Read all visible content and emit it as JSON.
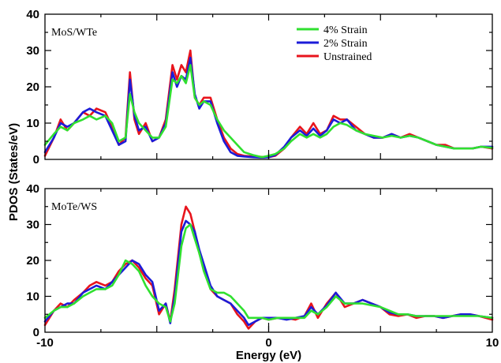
{
  "chart_data": [
    {
      "type": "line",
      "panel_label": "MoS/WTe",
      "xlim": [
        -10,
        10
      ],
      "ylim": [
        0,
        40
      ],
      "xticks": [
        "-10",
        "",
        "0",
        "",
        "10"
      ],
      "yticks": [
        "0",
        "10",
        "20",
        "30",
        "40"
      ],
      "legend": [
        "4% Strain",
        "2% Strain",
        "Unstrained"
      ],
      "legend_placement": "top-right",
      "series": [
        {
          "name": "Unstrained",
          "color": "#e8141c",
          "x": [
            -10,
            -9.6,
            -9.3,
            -9.0,
            -8.7,
            -8.3,
            -8.0,
            -7.7,
            -7.3,
            -7.0,
            -6.7,
            -6.4,
            -6.2,
            -6.0,
            -5.8,
            -5.5,
            -5.2,
            -4.9,
            -4.6,
            -4.3,
            -4.1,
            -3.9,
            -3.7,
            -3.5,
            -3.3,
            -3.1,
            -2.9,
            -2.6,
            -2.3,
            -2.0,
            -1.7,
            -1.4,
            -1.1,
            -0.7,
            -0.3,
            0,
            0.3,
            0.7,
            1.0,
            1.4,
            1.7,
            2.0,
            2.3,
            2.6,
            2.9,
            3.2,
            3.5,
            3.9,
            4.3,
            4.7,
            5.1,
            5.5,
            5.9,
            6.3,
            6.7,
            7.1,
            7.5,
            7.9,
            8.3,
            8.7,
            9.1,
            9.5,
            10
          ],
          "y": [
            1,
            6,
            11,
            8,
            10,
            13,
            12,
            14,
            13,
            9,
            4,
            6,
            24,
            11,
            7,
            10,
            5,
            6,
            11,
            26,
            22,
            26,
            24,
            30,
            17,
            15,
            17,
            17,
            11,
            6,
            3,
            1.5,
            1,
            0.8,
            0.7,
            0.6,
            1,
            3,
            6,
            9,
            7,
            10,
            7,
            8,
            12,
            11,
            11,
            9,
            7,
            6,
            6,
            7,
            6,
            7,
            6,
            5,
            4,
            4,
            3,
            3,
            3,
            3.5,
            3
          ]
        },
        {
          "name": "2% Strain",
          "color": "#1c1cd8",
          "x": [
            -10,
            -9.6,
            -9.3,
            -9.0,
            -8.7,
            -8.3,
            -8.0,
            -7.7,
            -7.3,
            -7.0,
            -6.7,
            -6.4,
            -6.2,
            -6.0,
            -5.8,
            -5.5,
            -5.2,
            -4.9,
            -4.6,
            -4.3,
            -4.1,
            -3.9,
            -3.7,
            -3.5,
            -3.3,
            -3.1,
            -2.9,
            -2.6,
            -2.3,
            -2.0,
            -1.7,
            -1.4,
            -1.1,
            -0.7,
            -0.3,
            0,
            0.3,
            0.7,
            1.0,
            1.4,
            1.7,
            2.0,
            2.3,
            2.6,
            2.9,
            3.2,
            3.5,
            3.9,
            4.3,
            4.7,
            5.1,
            5.5,
            5.9,
            6.3,
            6.7,
            7.1,
            7.5,
            7.9,
            8.3,
            8.7,
            9.1,
            9.5,
            10
          ],
          "y": [
            2,
            6,
            10,
            9,
            10,
            13,
            14,
            13,
            12,
            8,
            4,
            5,
            22,
            12,
            8,
            9,
            5,
            6,
            10,
            24,
            20,
            23,
            22,
            28,
            18,
            14,
            16,
            16,
            10,
            5,
            2,
            1,
            0.8,
            0.6,
            0.5,
            0.6,
            1.2,
            3.5,
            6,
            8,
            6.5,
            8.5,
            6.5,
            8,
            11,
            10,
            11,
            8,
            7,
            6,
            6,
            7,
            6,
            6.5,
            6,
            5,
            4,
            3.5,
            3,
            3,
            3,
            3.5,
            3.5
          ]
        },
        {
          "name": "4% Strain",
          "color": "#30e030",
          "x": [
            -10,
            -9.6,
            -9.3,
            -9.0,
            -8.7,
            -8.3,
            -8.0,
            -7.7,
            -7.3,
            -7.0,
            -6.7,
            -6.4,
            -6.2,
            -6.0,
            -5.8,
            -5.5,
            -5.2,
            -4.9,
            -4.6,
            -4.3,
            -4.1,
            -3.9,
            -3.7,
            -3.5,
            -3.3,
            -3.1,
            -2.9,
            -2.6,
            -2.3,
            -2.0,
            -1.7,
            -1.4,
            -1.1,
            -0.7,
            -0.3,
            0,
            0.3,
            0.7,
            1.0,
            1.4,
            1.7,
            2.0,
            2.3,
            2.6,
            2.9,
            3.2,
            3.5,
            3.9,
            4.3,
            4.7,
            5.1,
            5.5,
            5.9,
            6.3,
            6.7,
            7.1,
            7.5,
            7.9,
            8.3,
            8.7,
            9.1,
            9.5,
            10
          ],
          "y": [
            4,
            7,
            9,
            8,
            10,
            11,
            12,
            11,
            12,
            10,
            5,
            6,
            18,
            13,
            10,
            8,
            6,
            6,
            9,
            22,
            21,
            23,
            21,
            26,
            17,
            15,
            16,
            15,
            11,
            8,
            6,
            4,
            2,
            1.2,
            0.6,
            1,
            1.5,
            3,
            5,
            7,
            6,
            7,
            6,
            7,
            9,
            10,
            9.5,
            8,
            7,
            6.5,
            6,
            6.5,
            6,
            6.5,
            6,
            5,
            4,
            3.5,
            3,
            3,
            3,
            3.5,
            3.2
          ]
        }
      ]
    },
    {
      "type": "line",
      "panel_label": "MoTe/WS",
      "xlim": [
        -10,
        10
      ],
      "ylim": [
        0,
        40
      ],
      "xticks": [
        "-10",
        "",
        "0",
        "",
        "10"
      ],
      "yticks": [
        "0",
        "10",
        "20",
        "30",
        "40"
      ],
      "xlabel": "Energy (eV)",
      "series": [
        {
          "name": "Unstrained",
          "color": "#e8141c",
          "x": [
            -10,
            -9.6,
            -9.3,
            -9.0,
            -8.7,
            -8.3,
            -8.0,
            -7.7,
            -7.3,
            -7.0,
            -6.7,
            -6.4,
            -6.1,
            -5.8,
            -5.5,
            -5.2,
            -4.9,
            -4.6,
            -4.4,
            -4.2,
            -3.9,
            -3.7,
            -3.5,
            -3.3,
            -3.1,
            -2.9,
            -2.6,
            -2.3,
            -2.0,
            -1.7,
            -1.4,
            -1.1,
            -0.9,
            -0.6,
            -0.3,
            0,
            0.4,
            0.8,
            1.2,
            1.6,
            1.9,
            2.2,
            2.6,
            3.0,
            3.4,
            3.8,
            4.2,
            4.6,
            5.0,
            5.4,
            5.8,
            6.2,
            6.6,
            7.0,
            7.4,
            7.8,
            8.2,
            8.6,
            9.0,
            9.4,
            10
          ],
          "y": [
            2,
            6,
            8,
            7,
            9,
            11,
            13,
            14,
            13,
            14,
            17,
            19,
            20,
            18,
            15,
            13,
            5,
            8,
            3,
            12,
            30,
            35,
            33,
            28,
            22,
            18,
            12,
            10,
            9,
            8,
            5,
            3,
            1,
            3,
            4,
            3.5,
            4,
            4,
            3.5,
            4.5,
            8,
            4,
            8,
            11,
            7,
            8,
            9,
            8,
            7,
            5,
            4.5,
            5,
            4,
            4.5,
            4.5,
            4,
            4.5,
            5,
            5,
            4.5,
            3.5
          ]
        },
        {
          "name": "2% Strain",
          "color": "#1c1cd8",
          "x": [
            -10,
            -9.6,
            -9.3,
            -9.0,
            -8.7,
            -8.3,
            -8.0,
            -7.7,
            -7.3,
            -7.0,
            -6.7,
            -6.4,
            -6.1,
            -5.8,
            -5.5,
            -5.2,
            -4.9,
            -4.6,
            -4.4,
            -4.2,
            -3.9,
            -3.7,
            -3.5,
            -3.3,
            -3.1,
            -2.9,
            -2.6,
            -2.3,
            -2.0,
            -1.7,
            -1.4,
            -1.1,
            -0.9,
            -0.6,
            -0.3,
            0,
            0.4,
            0.8,
            1.2,
            1.6,
            1.9,
            2.2,
            2.6,
            3.0,
            3.4,
            3.8,
            4.2,
            4.6,
            5.0,
            5.4,
            5.8,
            6.2,
            6.6,
            7.0,
            7.4,
            7.8,
            8.2,
            8.6,
            9.0,
            9.4,
            10
          ],
          "y": [
            3,
            6,
            7,
            8,
            8,
            11,
            12,
            13,
            12,
            14,
            16,
            18,
            20,
            19,
            16,
            14,
            6,
            8,
            2.5,
            10,
            28,
            31,
            30,
            28,
            23,
            19,
            13,
            10,
            9,
            8,
            6,
            4,
            2,
            3,
            4,
            4,
            4,
            3.5,
            4,
            4.5,
            7,
            5,
            7.5,
            11,
            8,
            8,
            9,
            8,
            7,
            5.5,
            5,
            5,
            4.5,
            4.5,
            4.5,
            4,
            4.5,
            5,
            5,
            4.5,
            4
          ]
        },
        {
          "name": "4% Strain",
          "color": "#30e030",
          "x": [
            -10,
            -9.6,
            -9.3,
            -9.0,
            -8.7,
            -8.3,
            -8.0,
            -7.7,
            -7.3,
            -7.0,
            -6.7,
            -6.4,
            -6.1,
            -5.8,
            -5.5,
            -5.2,
            -4.9,
            -4.6,
            -4.4,
            -4.2,
            -3.9,
            -3.7,
            -3.5,
            -3.3,
            -3.1,
            -2.9,
            -2.6,
            -2.3,
            -2.0,
            -1.7,
            -1.4,
            -1.1,
            -0.9,
            -0.6,
            -0.3,
            0,
            0.4,
            0.8,
            1.2,
            1.6,
            1.9,
            2.2,
            2.6,
            3.0,
            3.4,
            3.8,
            4.2,
            4.6,
            5.0,
            5.4,
            5.8,
            6.2,
            6.6,
            7.0,
            7.4,
            7.8,
            8.2,
            8.6,
            9.0,
            9.4,
            10
          ],
          "y": [
            4,
            6,
            7,
            7,
            8,
            10,
            11,
            12,
            12,
            13,
            16,
            20,
            19,
            17,
            13,
            10,
            8,
            7,
            3,
            8,
            24,
            29,
            30,
            26,
            22,
            17,
            12,
            11,
            11,
            10,
            8,
            6,
            4,
            4,
            4,
            3.5,
            4,
            4,
            4,
            4,
            6,
            5,
            7,
            10,
            8,
            8,
            8,
            7.5,
            7,
            6,
            5,
            5,
            4.5,
            4.5,
            4.5,
            4.5,
            4.5,
            4.5,
            4.5,
            4.5,
            4
          ]
        }
      ]
    }
  ],
  "shared": {
    "ylabel": "PDOS (States/eV)"
  }
}
